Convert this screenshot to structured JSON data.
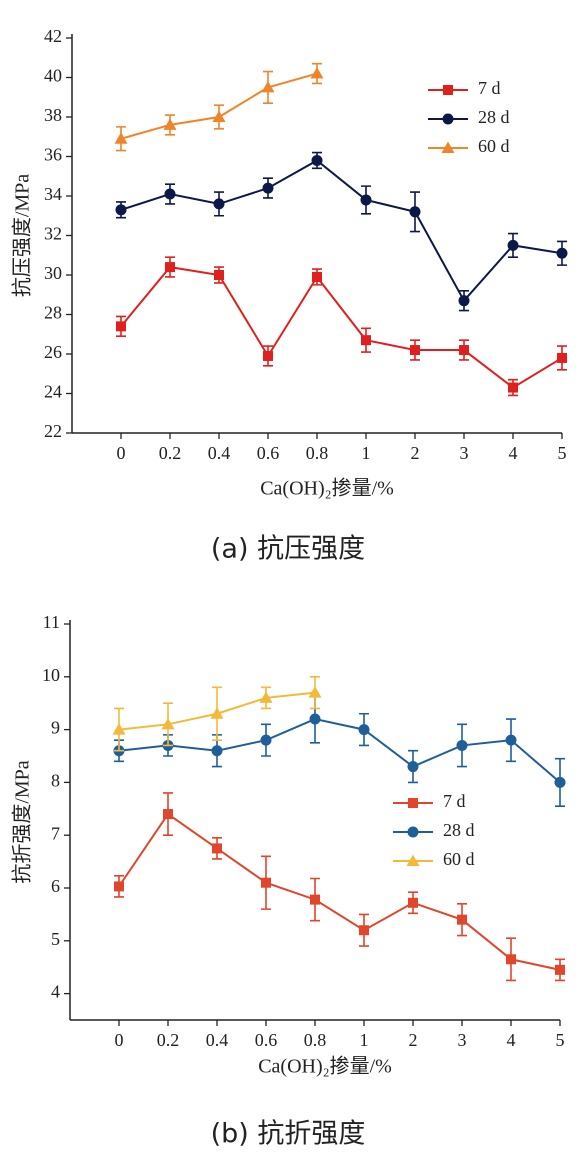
{
  "chart_data": [
    {
      "type": "line",
      "caption": "(a) 抗压强度",
      "ylabel": "抗压强度/MPa",
      "xlabel": "Ca(OH)₂掺量/%",
      "categories": [
        "0",
        "0.2",
        "0.4",
        "0.6",
        "0.8",
        "1",
        "2",
        "3",
        "4",
        "5"
      ],
      "ylim": [
        22,
        42
      ],
      "yticks": [
        22,
        24,
        26,
        28,
        30,
        32,
        34,
        36,
        38,
        40,
        42
      ],
      "series": [
        {
          "name": "7 d",
          "color": "#e0201e",
          "marker": "square",
          "values": [
            27.4,
            30.4,
            30.0,
            25.9,
            29.9,
            26.7,
            26.2,
            26.2,
            24.3,
            25.8
          ],
          "errors": [
            0.5,
            0.5,
            0.4,
            0.5,
            0.4,
            0.6,
            0.5,
            0.5,
            0.4,
            0.6
          ]
        },
        {
          "name": "28 d",
          "color": "#0c1848",
          "marker": "circle",
          "values": [
            33.3,
            34.1,
            33.6,
            34.4,
            35.8,
            33.8,
            33.2,
            28.7,
            31.5,
            31.1
          ],
          "errors": [
            0.4,
            0.5,
            0.6,
            0.5,
            0.4,
            0.7,
            1.0,
            0.5,
            0.6,
            0.6
          ]
        },
        {
          "name": "60 d",
          "color": "#f0842a",
          "marker": "triangle",
          "values": [
            36.9,
            37.6,
            38.0,
            39.5,
            40.2,
            null,
            null,
            null,
            null,
            null
          ],
          "errors": [
            0.6,
            0.5,
            0.6,
            0.8,
            0.5,
            null,
            null,
            null,
            null,
            null
          ]
        }
      ]
    },
    {
      "type": "line",
      "caption": "(b) 抗折强度",
      "ylabel": "抗折强度/MPa",
      "xlabel": "Ca(OH)₂掺量/%",
      "categories": [
        "0",
        "0.2",
        "0.4",
        "0.6",
        "0.8",
        "1",
        "2",
        "3",
        "4",
        "5"
      ],
      "ylim": [
        3.5,
        11
      ],
      "yticks": [
        4,
        5,
        6,
        7,
        8,
        9,
        10,
        11
      ],
      "series": [
        {
          "name": "7 d",
          "color": "#e0462b",
          "marker": "square",
          "values": [
            6.03,
            7.4,
            6.75,
            6.1,
            5.78,
            5.2,
            5.72,
            5.4,
            4.65,
            4.45
          ],
          "errors": [
            0.2,
            0.4,
            0.2,
            0.5,
            0.4,
            0.3,
            0.2,
            0.3,
            0.4,
            0.2
          ]
        },
        {
          "name": "28 d",
          "color": "#1f5f99",
          "marker": "circle",
          "values": [
            8.6,
            8.7,
            8.6,
            8.8,
            9.2,
            9.0,
            8.3,
            8.7,
            8.8,
            8.0
          ],
          "errors": [
            0.2,
            0.2,
            0.3,
            0.3,
            0.45,
            0.3,
            0.3,
            0.4,
            0.4,
            0.45
          ]
        },
        {
          "name": "60 d",
          "color": "#f4b93a",
          "marker": "triangle",
          "values": [
            9.0,
            9.1,
            9.3,
            9.6,
            9.7,
            null,
            null,
            null,
            null,
            null
          ],
          "errors": [
            0.4,
            0.4,
            0.5,
            0.2,
            0.3,
            null,
            null,
            null,
            null,
            null
          ]
        }
      ]
    }
  ]
}
